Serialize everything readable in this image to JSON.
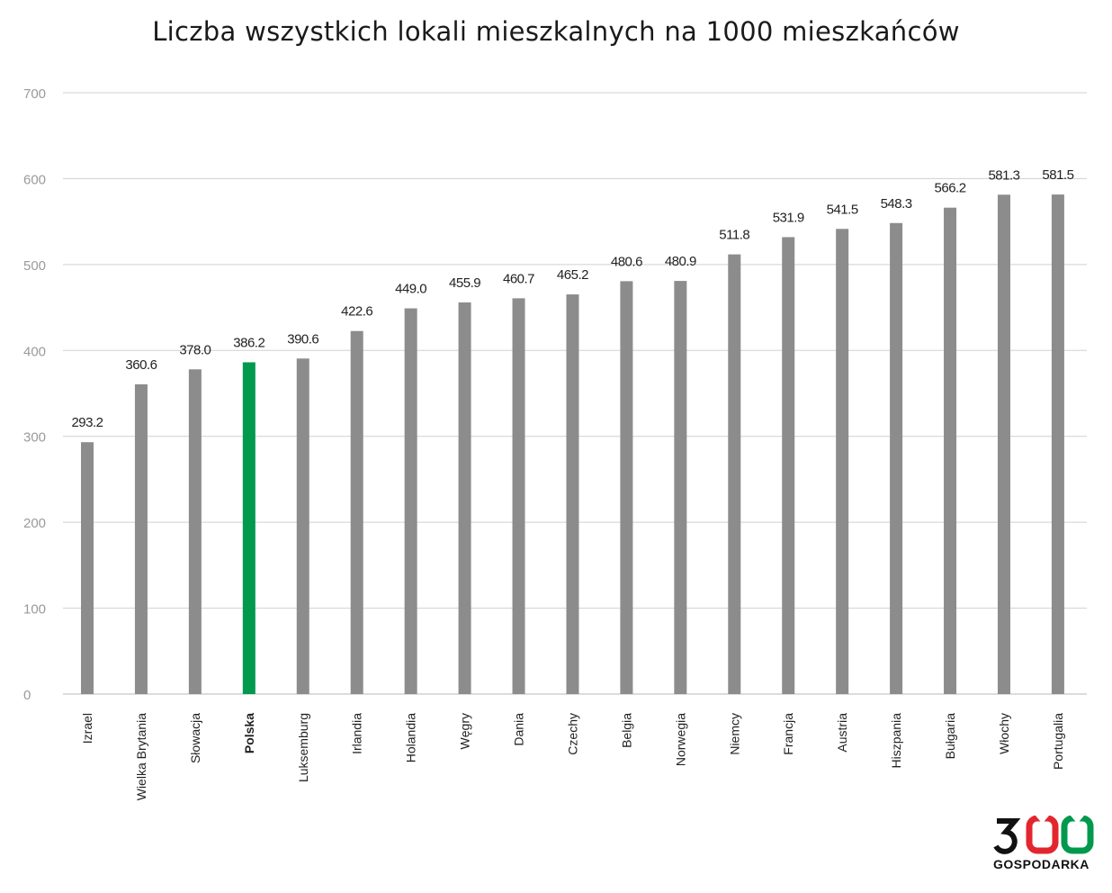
{
  "chart_data": {
    "type": "bar",
    "title": "Liczba wszystkich lokali mieszkalnych na 1000 mieszkańców",
    "xlabel": "",
    "ylabel": "",
    "ylim": [
      0,
      700
    ],
    "yticks": [
      0,
      100,
      200,
      300,
      400,
      500,
      600,
      700
    ],
    "grid": true,
    "categories": [
      "Izrael",
      "Wielka Brytania",
      "Słowacja",
      "Polska",
      "Luksemburg",
      "Irlandia",
      "Holandia",
      "Węgry",
      "Dania",
      "Czechy",
      "Belgia",
      "Norwegia",
      "Niemcy",
      "Francja",
      "Austria",
      "Hiszpania",
      "Bułgaria",
      "Włochy",
      "Portugalia"
    ],
    "values": [
      293.2,
      360.6,
      378.0,
      386.2,
      390.6,
      422.6,
      449.0,
      455.9,
      460.7,
      465.2,
      480.6,
      480.9,
      511.8,
      531.9,
      541.5,
      548.3,
      566.2,
      581.3,
      581.5
    ],
    "value_labels": [
      "293.2",
      "360.6",
      "378.0",
      "386.2",
      "390.6",
      "422.6",
      "449.0",
      "455.9",
      "460.7",
      "465.2",
      "480.6",
      "480.9",
      "511.8",
      "531.9",
      "541.5",
      "548.3",
      "566.2",
      "581.3",
      "581.5"
    ],
    "highlight_category": "Polska",
    "colors": {
      "bar": "#8c8c8c",
      "highlight": "#00994d",
      "grid": "#d0d0d0",
      "tick_text": "#9a9a9a",
      "label_text": "#222222"
    }
  },
  "logo": {
    "digits": "300",
    "word": "GOSPODARKA",
    "colors": {
      "digit": "#111111",
      "red": "#e3262e",
      "green": "#00994d"
    }
  }
}
